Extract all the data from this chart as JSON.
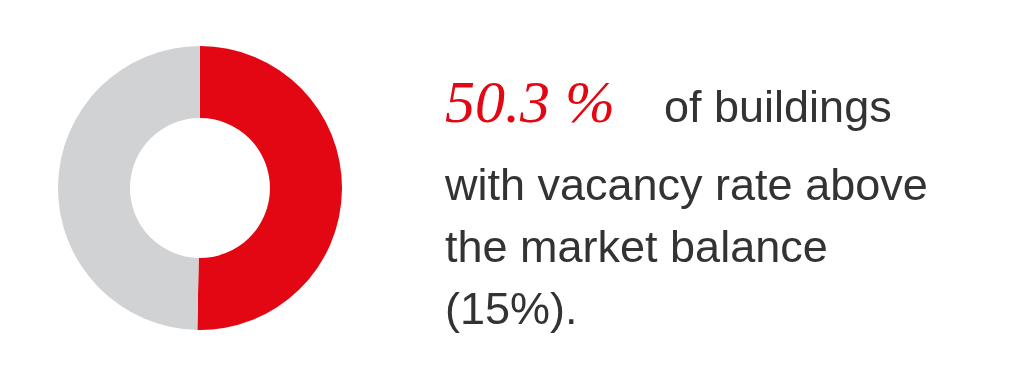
{
  "chart_data": {
    "type": "donut",
    "categories": [
      null,
      null
    ],
    "values": [
      50.3,
      49.7
    ],
    "colors": [
      "#e30613",
      "#d1d2d4"
    ],
    "annotations": [
      "50.3 %",
      "of buildings",
      "with vacancy rate above",
      "the market balance",
      "(15%)."
    ]
  }
}
